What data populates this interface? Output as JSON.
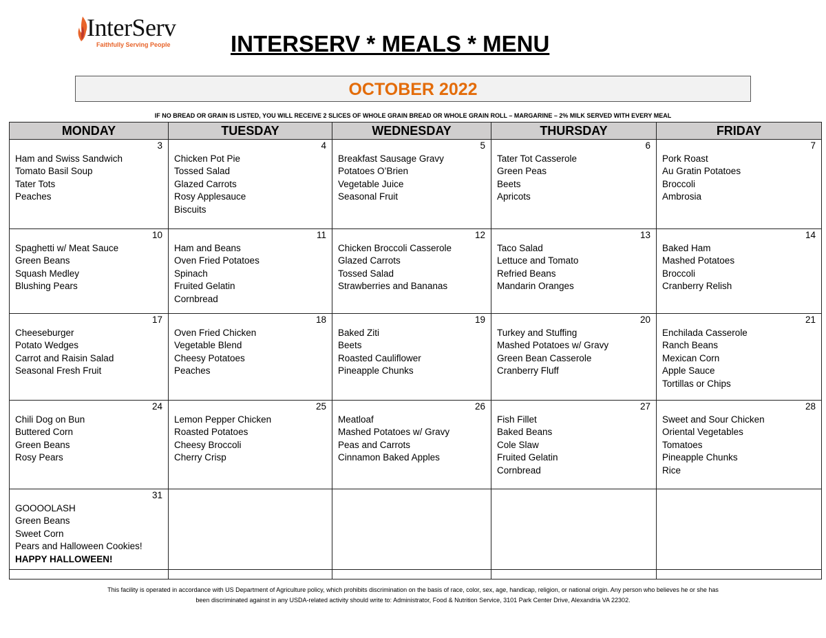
{
  "logo": {
    "text": "InterServ",
    "tagline": "Faithfully Serving People"
  },
  "title": "INTERSERV * MEALS * MENU",
  "month": "OCTOBER 2022",
  "notice": "IF NO BREAD OR GRAIN IS LISTED, YOU WILL RECEIVE 2 SLICES OF WHOLE GRAIN BREAD OR WHOLE GRAIN ROLL – MARGARINE – 2% MILK SERVED WITH EVERY MEAL",
  "days": [
    "MONDAY",
    "TUESDAY",
    "WEDNESDAY",
    "THURSDAY",
    "FRIDAY"
  ],
  "weeks": [
    [
      {
        "date": "3",
        "items": [
          "Ham and Swiss Sandwich",
          "Tomato Basil Soup",
          "Tater Tots",
          "Peaches"
        ]
      },
      {
        "date": "4",
        "items": [
          "Chicken Pot Pie",
          "Tossed Salad",
          "Glazed Carrots",
          "Rosy Applesauce",
          "Biscuits"
        ]
      },
      {
        "date": "5",
        "items": [
          "Breakfast Sausage Gravy",
          "Potatoes O’Brien",
          "Vegetable Juice",
          "Seasonal Fruit"
        ]
      },
      {
        "date": "6",
        "items": [
          "Tater Tot Casserole",
          "Green Peas",
          "Beets",
          "Apricots"
        ]
      },
      {
        "date": "7",
        "items": [
          "Pork Roast",
          "Au Gratin Potatoes",
          "Broccoli",
          "Ambrosia"
        ]
      }
    ],
    [
      {
        "date": "10",
        "items": [
          "Spaghetti w/ Meat Sauce",
          "Green Beans",
          "Squash Medley",
          "Blushing Pears"
        ]
      },
      {
        "date": "11",
        "items": [
          "Ham and Beans",
          "Oven Fried Potatoes",
          "Spinach",
          "Fruited Gelatin",
          "Cornbread"
        ]
      },
      {
        "date": "12",
        "items": [
          "Chicken Broccoli Casserole",
          "Glazed Carrots",
          "Tossed Salad",
          "Strawberries and Bananas"
        ]
      },
      {
        "date": "13",
        "items": [
          "Taco Salad",
          "Lettuce and Tomato",
          "Refried Beans",
          "Mandarin Oranges"
        ]
      },
      {
        "date": "14",
        "items": [
          "Baked Ham",
          "Mashed Potatoes",
          "Broccoli",
          "Cranberry Relish"
        ]
      }
    ],
    [
      {
        "date": "17",
        "items": [
          "Cheeseburger",
          "Potato Wedges",
          "Carrot and Raisin Salad",
          "Seasonal Fresh Fruit"
        ]
      },
      {
        "date": "18",
        "items": [
          "Oven Fried Chicken",
          "Vegetable Blend",
          "Cheesy Potatoes",
          "Peaches"
        ]
      },
      {
        "date": "19",
        "items": [
          "Baked Ziti",
          "Beets",
          "Roasted Cauliflower",
          "Pineapple Chunks"
        ]
      },
      {
        "date": "20",
        "items": [
          "Turkey and Stuffing",
          "Mashed Potatoes w/ Gravy",
          "Green Bean Casserole",
          "Cranberry Fluff"
        ]
      },
      {
        "date": "21",
        "items": [
          "Enchilada Casserole",
          "Ranch Beans",
          "Mexican Corn",
          "Apple Sauce",
          "Tortillas or Chips"
        ]
      }
    ],
    [
      {
        "date": "24",
        "items": [
          "Chili Dog on Bun",
          "Buttered Corn",
          "Green Beans",
          "Rosy Pears"
        ]
      },
      {
        "date": "25",
        "items": [
          "Lemon Pepper Chicken",
          "Roasted Potatoes",
          "Cheesy Broccoli",
          "Cherry Crisp"
        ]
      },
      {
        "date": "26",
        "items": [
          "Meatloaf",
          "Mashed Potatoes w/ Gravy",
          "Peas and Carrots",
          "Cinnamon Baked Apples"
        ]
      },
      {
        "date": "27",
        "items": [
          "Fish Fillet",
          "Baked Beans",
          "Cole Slaw",
          "Fruited Gelatin",
          "Cornbread"
        ]
      },
      {
        "date": "28",
        "items": [
          "Sweet and Sour Chicken",
          "Oriental Vegetables",
          "Tomatoes",
          "Pineapple Chunks",
          "Rice"
        ]
      }
    ],
    [
      {
        "date": "31",
        "items": [
          "GOOOOLASH",
          "Green Beans",
          "Sweet Corn",
          "Pears and Halloween Cookies!"
        ],
        "bold": "HAPPY HALLOWEEN!"
      },
      {
        "date": "",
        "items": []
      },
      {
        "date": "",
        "items": []
      },
      {
        "date": "",
        "items": []
      },
      {
        "date": "",
        "items": []
      }
    ]
  ],
  "footer": [
    "This facility is operated in accordance with US Department of Agriculture policy, which prohibits discrimination on the basis of race, color, sex, age, handicap, religion, or national origin.  Any person who believes he or she has",
    "been discriminated against in any USDA-related activity should write to:  Administrator, Food & Nutrition Service, 3101 Park Center Drive, Alexandria VA 22302."
  ]
}
